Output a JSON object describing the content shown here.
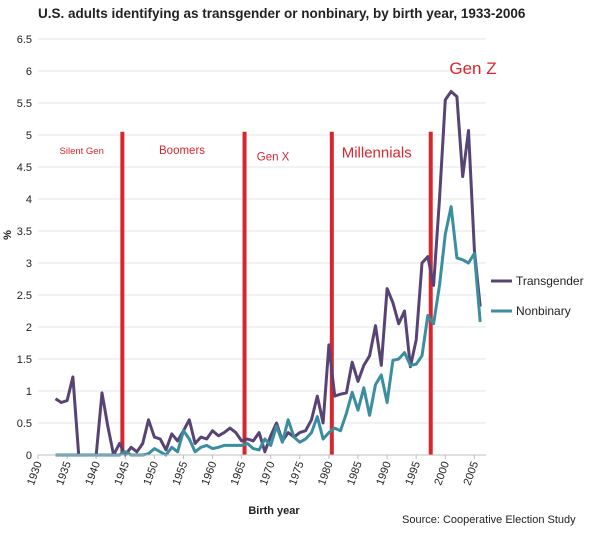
{
  "chart_data": {
    "type": "line",
    "title": "U.S. adults identifying as transgender or nonbinary, by birth year, 1933-2006",
    "xlabel": "Birth year",
    "ylabel": "%",
    "xlim": [
      1930,
      2007
    ],
    "ylim": [
      0,
      6.5
    ],
    "x_ticks": [
      1930,
      1935,
      1940,
      1945,
      1950,
      1955,
      1960,
      1965,
      1970,
      1975,
      1980,
      1985,
      1990,
      1995,
      2000,
      2005
    ],
    "y_ticks": [
      "0",
      "0.5",
      "1",
      "1.5",
      "2",
      "2.5",
      "3",
      "3.5",
      "4",
      "4.5",
      "5",
      "5.5",
      "6",
      "6.5"
    ],
    "source": "Source: Cooperative Election Study",
    "series": [
      {
        "name": "Transgender",
        "color": "#584474",
        "points": [
          [
            1933,
            0.88
          ],
          [
            1934,
            0.82
          ],
          [
            1935,
            0.85
          ],
          [
            1936,
            1.22
          ],
          [
            1937,
            0
          ],
          [
            1938,
            0
          ],
          [
            1939,
            0
          ],
          [
            1940,
            0
          ],
          [
            1941,
            0.97
          ],
          [
            1942,
            0.45
          ],
          [
            1943,
            0
          ],
          [
            1944,
            0.18
          ],
          [
            1945,
            0
          ],
          [
            1946,
            0.12
          ],
          [
            1947,
            0.05
          ],
          [
            1948,
            0.18
          ],
          [
            1949,
            0.55
          ],
          [
            1950,
            0.28
          ],
          [
            1951,
            0.25
          ],
          [
            1952,
            0.08
          ],
          [
            1953,
            0.33
          ],
          [
            1954,
            0.22
          ],
          [
            1955,
            0.38
          ],
          [
            1956,
            0.55
          ],
          [
            1957,
            0.18
          ],
          [
            1958,
            0.28
          ],
          [
            1959,
            0.25
          ],
          [
            1960,
            0.38
          ],
          [
            1961,
            0.3
          ],
          [
            1962,
            0.35
          ],
          [
            1963,
            0.42
          ],
          [
            1964,
            0.35
          ],
          [
            1965,
            0.22
          ],
          [
            1966,
            0.25
          ],
          [
            1967,
            0.22
          ],
          [
            1968,
            0.35
          ],
          [
            1969,
            0.05
          ],
          [
            1970,
            0.3
          ],
          [
            1971,
            0.5
          ],
          [
            1972,
            0.22
          ],
          [
            1973,
            0.35
          ],
          [
            1974,
            0.28
          ],
          [
            1975,
            0.35
          ],
          [
            1976,
            0.38
          ],
          [
            1977,
            0.55
          ],
          [
            1978,
            0.92
          ],
          [
            1979,
            0.5
          ],
          [
            1980,
            1.72
          ],
          [
            1981,
            0.92
          ],
          [
            1982,
            0.95
          ],
          [
            1983,
            0.97
          ],
          [
            1984,
            1.45
          ],
          [
            1985,
            1.15
          ],
          [
            1986,
            1.4
          ],
          [
            1987,
            1.55
          ],
          [
            1988,
            2.02
          ],
          [
            1989,
            1.4
          ],
          [
            1990,
            2.6
          ],
          [
            1991,
            2.38
          ],
          [
            1992,
            2.05
          ],
          [
            1993,
            2.25
          ],
          [
            1994,
            1.38
          ],
          [
            1995,
            1.8
          ],
          [
            1996,
            3.0
          ],
          [
            1997,
            3.1
          ],
          [
            1998,
            2.65
          ],
          [
            1999,
            4.0
          ],
          [
            2000,
            5.55
          ],
          [
            2001,
            5.68
          ],
          [
            2002,
            5.6
          ],
          [
            2003,
            4.35
          ],
          [
            2004,
            5.07
          ],
          [
            2005,
            3.2
          ],
          [
            2006,
            2.32
          ]
        ]
      },
      {
        "name": "Nonbinary",
        "color": "#3b8ea0",
        "points": [
          [
            1933,
            0
          ],
          [
            1934,
            0
          ],
          [
            1935,
            0
          ],
          [
            1936,
            0
          ],
          [
            1937,
            0
          ],
          [
            1938,
            0
          ],
          [
            1939,
            0
          ],
          [
            1940,
            0
          ],
          [
            1941,
            0
          ],
          [
            1942,
            0
          ],
          [
            1943,
            0
          ],
          [
            1944,
            0
          ],
          [
            1945,
            0.05
          ],
          [
            1946,
            0
          ],
          [
            1947,
            0
          ],
          [
            1948,
            0
          ],
          [
            1949,
            0.02
          ],
          [
            1950,
            0.1
          ],
          [
            1951,
            0.05
          ],
          [
            1952,
            0
          ],
          [
            1953,
            0.12
          ],
          [
            1954,
            0.05
          ],
          [
            1955,
            0.38
          ],
          [
            1956,
            0.25
          ],
          [
            1957,
            0.05
          ],
          [
            1958,
            0.12
          ],
          [
            1959,
            0.15
          ],
          [
            1960,
            0.1
          ],
          [
            1961,
            0.12
          ],
          [
            1962,
            0.15
          ],
          [
            1963,
            0.15
          ],
          [
            1964,
            0.15
          ],
          [
            1965,
            0.15
          ],
          [
            1966,
            0.18
          ],
          [
            1967,
            0.1
          ],
          [
            1968,
            0.08
          ],
          [
            1969,
            0.25
          ],
          [
            1970,
            0.15
          ],
          [
            1971,
            0.45
          ],
          [
            1972,
            0.2
          ],
          [
            1973,
            0.55
          ],
          [
            1974,
            0.28
          ],
          [
            1975,
            0.2
          ],
          [
            1976,
            0.25
          ],
          [
            1977,
            0.35
          ],
          [
            1978,
            0.6
          ],
          [
            1979,
            0.25
          ],
          [
            1980,
            0.35
          ],
          [
            1981,
            0.42
          ],
          [
            1982,
            0.38
          ],
          [
            1983,
            0.65
          ],
          [
            1984,
            0.98
          ],
          [
            1985,
            0.7
          ],
          [
            1986,
            1.05
          ],
          [
            1987,
            0.62
          ],
          [
            1988,
            1.1
          ],
          [
            1989,
            1.25
          ],
          [
            1990,
            0.82
          ],
          [
            1991,
            1.48
          ],
          [
            1992,
            1.5
          ],
          [
            1993,
            1.6
          ],
          [
            1994,
            1.4
          ],
          [
            1995,
            1.42
          ],
          [
            1996,
            1.55
          ],
          [
            1997,
            2.18
          ],
          [
            1998,
            2.05
          ],
          [
            1999,
            2.65
          ],
          [
            2000,
            3.45
          ],
          [
            2001,
            3.88
          ],
          [
            2002,
            3.08
          ],
          [
            2003,
            3.05
          ],
          [
            2004,
            3.0
          ],
          [
            2005,
            3.15
          ],
          [
            2006,
            2.08
          ]
        ]
      }
    ],
    "generation_dividers": [
      1944.5,
      1965.5,
      1980.5,
      1997.5
    ],
    "divider_color": "#d7262e",
    "generations": [
      {
        "label": "Silent Gen",
        "x": 1933.7,
        "y": 4.7,
        "size": "small"
      },
      {
        "label": "Boomers",
        "x": 1950.8,
        "y": 4.7,
        "size": "medium"
      },
      {
        "label": "Gen X",
        "x": 1967.6,
        "y": 4.6,
        "size": "medium"
      },
      {
        "label": "Millennials",
        "x": 1982.2,
        "y": 4.65,
        "size": "large"
      },
      {
        "label": "Gen Z",
        "x": 2000.7,
        "y": 5.95,
        "size": "xlarge"
      }
    ],
    "legend_position": "right"
  }
}
